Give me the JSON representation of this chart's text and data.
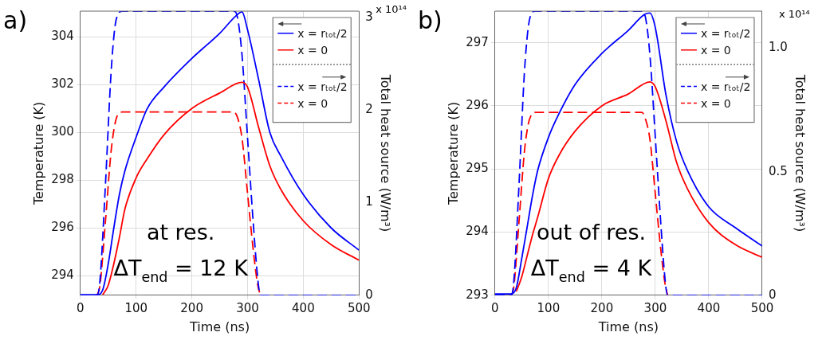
{
  "chart_data": [
    {
      "type": "line",
      "title": "a)",
      "xlabel": "Time (ns)",
      "ylabel": "Temperature (K)",
      "y2label": "Total heat source (W/m³)",
      "xlim": [
        0,
        500
      ],
      "xticks": [
        0,
        100,
        200,
        300,
        400,
        500
      ],
      "ylim": [
        293.18,
        305.08
      ],
      "yticks": [
        294,
        296,
        298,
        300,
        302,
        304
      ],
      "y2lim": [
        0,
        3.07
      ],
      "y2ticks": [
        0,
        1,
        2,
        3
      ],
      "grid": true,
      "legend": "top right",
      "marker": "none",
      "annotations": [
        "at res.",
        "ΔT$_{end}$ = 12 K",
        "x 10¹⁴"
      ],
      "series": [
        {
          "name": "x = rₜₒₜ/2",
          "color": "#0000ff",
          "line_style": "solid",
          "axis": "y",
          "x": [
            0,
            30,
            40,
            50,
            60,
            70,
            80,
            100,
            120,
            150,
            200,
            250,
            280,
            290,
            300,
            320,
            340,
            360,
            400,
            450,
            500
          ],
          "values": [
            293.2,
            293.2,
            293.4,
            294.5,
            296.0,
            297.4,
            298.4,
            299.8,
            301.0,
            301.9,
            303.1,
            304.15,
            304.9,
            305.05,
            304.3,
            302.2,
            300.0,
            299.0,
            297.4,
            296.0,
            295.07
          ]
        },
        {
          "name": "x = 0",
          "color": "#ff0000",
          "line_style": "solid",
          "axis": "y",
          "x": [
            40,
            50,
            60,
            70,
            80,
            100,
            120,
            150,
            200,
            250,
            290,
            300,
            320,
            340,
            360,
            400,
            450,
            500
          ],
          "values": [
            293.2,
            293.6,
            294.5,
            295.6,
            296.8,
            298.1,
            298.9,
            299.9,
            301.0,
            301.65,
            302.1,
            301.9,
            300.2,
            298.6,
            297.6,
            296.3,
            295.3,
            294.65
          ]
        },
        {
          "name": "x = rₜₒₜ/2",
          "color": "#0000ff",
          "line_style": "dashed",
          "axis": "y2",
          "x": [
            0,
            30,
            35,
            45,
            55,
            62,
            68,
            75,
            275,
            282,
            290,
            300,
            310,
            318,
            323,
            500
          ],
          "values": [
            0,
            0,
            0.15,
            1.2,
            2.4,
            2.9,
            3.04,
            3.07,
            3.07,
            3.0,
            2.6,
            1.7,
            0.8,
            0.2,
            0,
            0
          ]
        },
        {
          "name": "x = 0",
          "color": "#ff0000",
          "line_style": "dashed",
          "axis": "y2",
          "x": [
            30,
            35,
            45,
            55,
            62,
            68,
            75,
            275,
            282,
            290,
            300,
            310,
            318,
            323
          ],
          "values": [
            0,
            0.1,
            0.8,
            1.55,
            1.85,
            1.96,
            1.98,
            1.98,
            1.92,
            1.7,
            1.1,
            0.5,
            0.12,
            0
          ]
        }
      ]
    },
    {
      "type": "line",
      "title": "b)",
      "xlabel": "Time (ns)",
      "ylabel": "Temperature (K)",
      "y2label": "Total heat source (W/m³)",
      "xlim": [
        0,
        500
      ],
      "xticks": [
        0,
        100,
        200,
        300,
        400,
        500
      ],
      "ylim": [
        293,
        297.5
      ],
      "yticks": [
        293,
        294,
        295,
        296,
        297
      ],
      "y2lim": [
        0,
        1.15
      ],
      "y2ticks": [
        0,
        0.5,
        {
          "value": 1,
          "label": "1.0"
        }
      ],
      "grid": true,
      "legend": "top right",
      "marker": "none",
      "annotations": [
        "out of res.",
        "ΔT$_{end}$ = 4 K",
        "x 10¹⁴"
      ],
      "series": [
        {
          "name": "x = rₜₒₜ/2",
          "color": "#0000ff",
          "line_style": "solid",
          "axis": "y",
          "x": [
            0,
            30,
            40,
            50,
            60,
            70,
            80,
            100,
            120,
            150,
            200,
            250,
            280,
            290,
            300,
            320,
            340,
            360,
            400,
            450,
            500
          ],
          "values": [
            293.02,
            293.02,
            293.12,
            293.58,
            294.07,
            294.57,
            294.98,
            295.5,
            295.88,
            296.34,
            296.83,
            297.2,
            297.45,
            297.47,
            297.24,
            296.17,
            295.43,
            294.98,
            294.4,
            294.07,
            293.78
          ]
        },
        {
          "name": "x = 0",
          "color": "#ff0000",
          "line_style": "solid",
          "axis": "y",
          "x": [
            40,
            50,
            60,
            70,
            80,
            100,
            120,
            150,
            200,
            250,
            290,
            300,
            320,
            340,
            360,
            400,
            450,
            500
          ],
          "values": [
            293.06,
            293.29,
            293.62,
            293.95,
            294.24,
            294.85,
            295.22,
            295.6,
            296.0,
            296.19,
            296.38,
            296.3,
            295.76,
            295.1,
            294.69,
            294.15,
            293.8,
            293.6
          ]
        },
        {
          "name": "x = rₜₒₜ/2",
          "color": "#0000ff",
          "line_style": "dashed",
          "axis": "y2",
          "x": [
            0,
            30,
            35,
            45,
            55,
            62,
            68,
            75,
            275,
            282,
            290,
            300,
            310,
            318,
            323,
            500
          ],
          "values": [
            0,
            0,
            0.05,
            0.45,
            0.9,
            1.08,
            1.14,
            1.15,
            1.15,
            1.12,
            0.97,
            0.64,
            0.3,
            0.07,
            0,
            0
          ]
        },
        {
          "name": "x = 0",
          "color": "#ff0000",
          "line_style": "dashed",
          "axis": "y2",
          "x": [
            30,
            35,
            45,
            55,
            62,
            68,
            75,
            275,
            282,
            290,
            300,
            310,
            318,
            323
          ],
          "values": [
            0,
            0.03,
            0.3,
            0.58,
            0.69,
            0.73,
            0.74,
            0.74,
            0.71,
            0.63,
            0.41,
            0.19,
            0.05,
            0
          ]
        }
      ]
    }
  ]
}
